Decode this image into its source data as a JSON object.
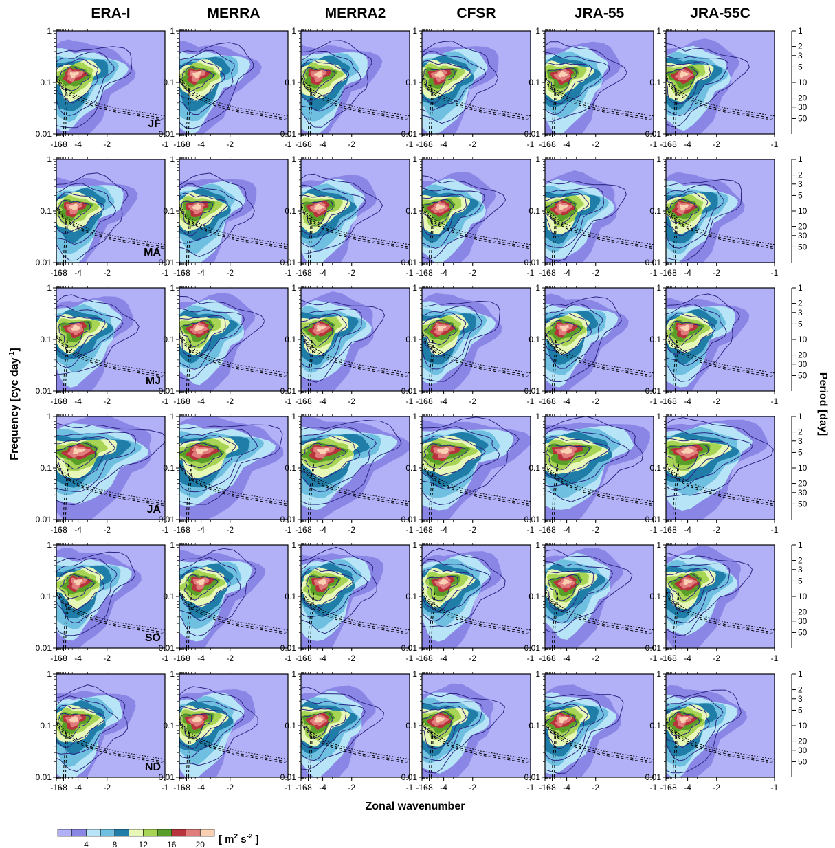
{
  "datasets": [
    "ERA-I",
    "MERRA",
    "MERRA2",
    "CFSR",
    "JRA-55",
    "JRA-55C"
  ],
  "seasons": [
    "JF",
    "MA",
    "MJ",
    "JA",
    "SO",
    "ND"
  ],
  "colors": {
    "levels": [
      "#b2b0f7",
      "#8a86e6",
      "#b8e4f7",
      "#6ebfe0",
      "#1f7da8",
      "#e6f7b8",
      "#a8d455",
      "#5a9e2a",
      "#b8343c",
      "#e07c7c",
      "#fad0b2"
    ],
    "contour": "#2a2482",
    "curve": "#000000"
  },
  "chart_data": {
    "type": "heatmap",
    "xlabel": "Zonal wavenumber",
    "ylabel_left": "Frequency [cyc day",
    "ylabel_left_sup": "-1",
    "ylabel_left_end": "]",
    "ylabel_right": "Period [day]",
    "x_ticks": [
      "-16",
      "-8",
      "-4",
      "-2",
      "-1"
    ],
    "x_scale": "reciprocal",
    "xlim": [
      -16,
      -1
    ],
    "y_scale": "log",
    "ylim": [
      0.01,
      1
    ],
    "y_ticks_left": [
      "1",
      "0.1",
      "0.01"
    ],
    "y_ticks_right": [
      "1",
      "2",
      "3",
      "5",
      "10",
      "20",
      "30",
      "50"
    ],
    "colorbar": {
      "tick_labels": [
        "4",
        "8",
        "12",
        "16",
        "20"
      ],
      "unit_prefix": "[ m",
      "unit_sup": "2",
      "unit_mid": " s",
      "unit_sup2": "-2",
      "unit_suffix": " ]"
    }
  }
}
